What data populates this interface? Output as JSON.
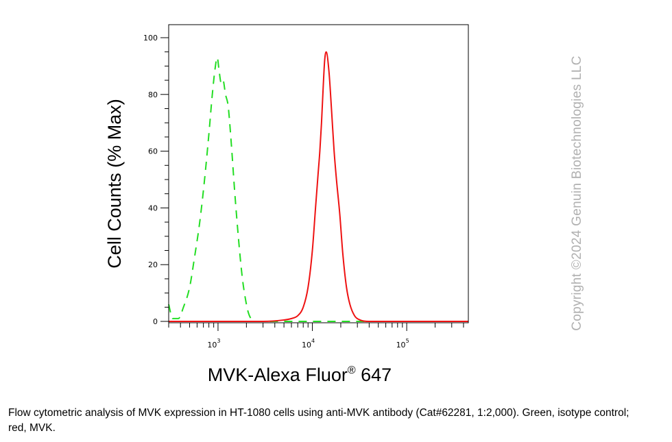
{
  "chart_data": {
    "type": "line",
    "ylabel": "Cell Counts (% Max)",
    "xlabel": "MVK-Alexa Fluor",
    "xlabel_sup": "®",
    "xlabel_tail": " 647",
    "xscale": "log",
    "xlim": [
      300,
      450000
    ],
    "ylim": [
      0,
      100
    ],
    "yticks": [
      0,
      20,
      40,
      60,
      80,
      100
    ],
    "xticks": [
      {
        "value": 1000,
        "base": "10",
        "exp": "3"
      },
      {
        "value": 10000,
        "base": "10",
        "exp": "4"
      },
      {
        "value": 100000,
        "base": "10",
        "exp": "5"
      }
    ],
    "grid": false,
    "series": [
      {
        "color": "#22dd22",
        "dash": "dashed",
        "x": [
          300,
          330,
          380,
          430,
          500,
          560,
          640,
          720,
          800,
          870,
          930,
          980,
          1030,
          1080,
          1130,
          1200,
          1280,
          1380,
          1500,
          1650,
          1800,
          1950,
          2100,
          2300,
          2600,
          3000,
          5000,
          20000,
          100000,
          450000
        ],
        "y": [
          6,
          1,
          1,
          5,
          12,
          22,
          35,
          50,
          66,
          80,
          89,
          93,
          88,
          84,
          85,
          80,
          76,
          63,
          46,
          29,
          16,
          8,
          3,
          0.5,
          0,
          0,
          0,
          0,
          0,
          0
        ]
      },
      {
        "color": "#ee1111",
        "dash": "solid",
        "x": [
          300,
          3000,
          5000,
          6000,
          7000,
          8000,
          9000,
          10000,
          10800,
          11500,
          12000,
          12500,
          13000,
          13500,
          14000,
          15000,
          16000,
          17000,
          18000,
          19500,
          21000,
          23000,
          25000,
          28000,
          32000,
          40000,
          100000,
          450000
        ],
        "y": [
          0,
          0,
          0.5,
          1,
          2,
          5,
          12,
          25,
          40,
          52,
          60,
          70,
          82,
          92,
          95,
          88,
          74,
          60,
          50,
          38,
          24,
          12,
          6,
          2,
          0.5,
          0,
          0,
          0
        ]
      }
    ]
  },
  "watermark": "Copyright ©2024 Genuin Biotechnologies LLC",
  "caption": "Flow cytometric analysis of MVK expression in HT-1080 cells using anti-MVK antibody (Cat#62281, 1:2,000). Green, isotype control; red, MVK."
}
